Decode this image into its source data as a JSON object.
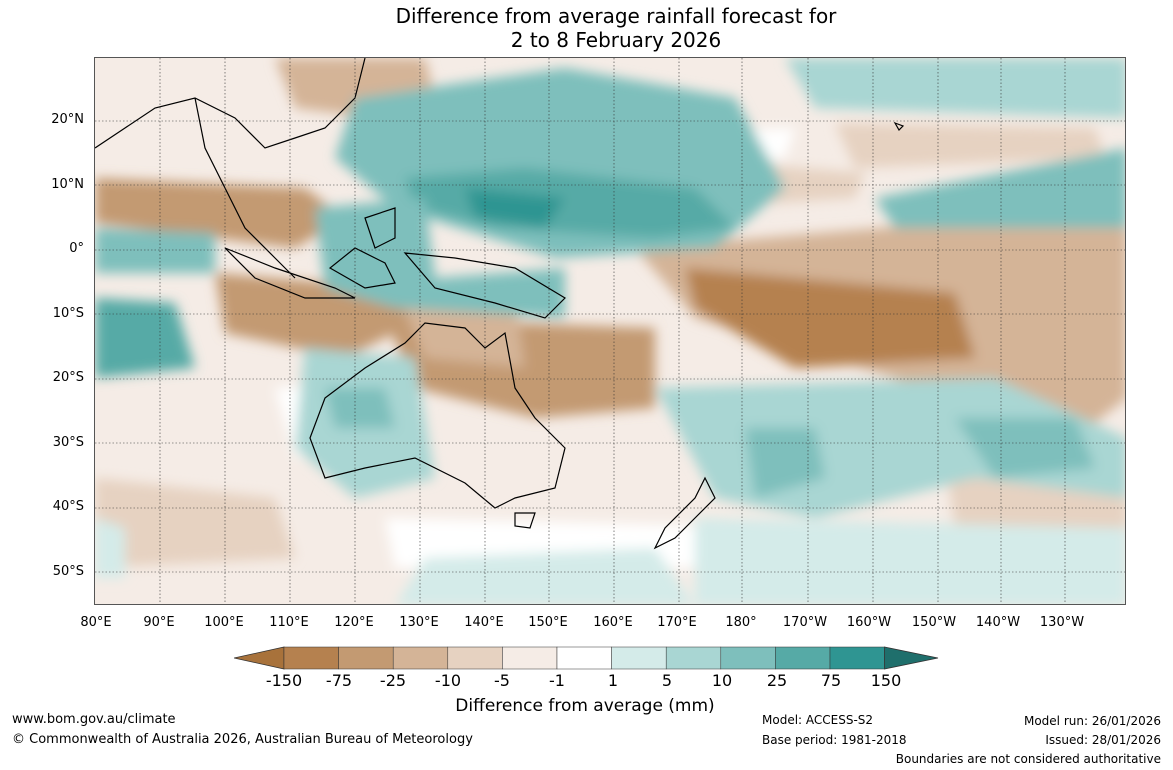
{
  "title_line1": "Difference from average rainfall forecast for",
  "title_line2": "2 to 8 February 2026",
  "lat_labels": [
    "20°N",
    "10°N",
    "0°",
    "10°S",
    "20°S",
    "30°S",
    "40°S",
    "50°S"
  ],
  "lon_labels": [
    "80°E",
    "90°E",
    "100°E",
    "110°E",
    "120°E",
    "130°E",
    "140°E",
    "150°E",
    "160°E",
    "170°E",
    "180°",
    "170°W",
    "160°W",
    "150°W",
    "140°W",
    "130°W"
  ],
  "colorbar": {
    "labels": [
      "-150",
      "-75",
      "-25",
      "-10",
      "-5",
      "-1",
      "1",
      "5",
      "10",
      "25",
      "75",
      "150"
    ],
    "colors": [
      "#a8723b",
      "#b5814f",
      "#c39a72",
      "#d4b497",
      "#e6d2c1",
      "#f5ece6",
      "#ffffff",
      "#d4ebe9",
      "#a9d6d3",
      "#7ebfbc",
      "#56aaa6",
      "#2f9592",
      "#1f6f6c"
    ],
    "title": "Difference from average (mm)"
  },
  "footer": {
    "website": "www.bom.gov.au/climate",
    "copyright": "© Commonwealth of Australia 2026, Australian Bureau of Meteorology",
    "model": "Model: ACCESS-S2",
    "base_period": "Base period: 1981-2018",
    "model_run": "Model run: 26/01/2026",
    "issued": "Issued: 28/01/2026",
    "disclaimer": "Boundaries are not considered authoritative"
  }
}
